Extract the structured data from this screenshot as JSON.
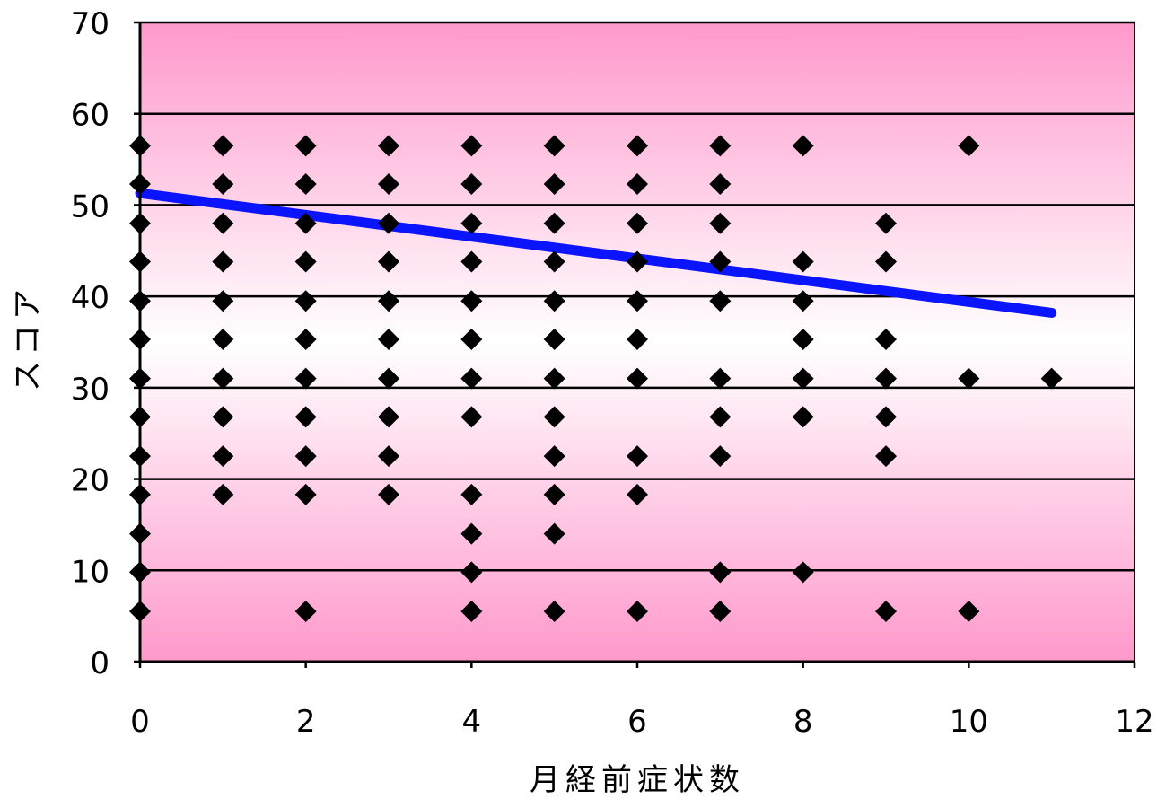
{
  "chart_data": {
    "type": "scatter",
    "title": "",
    "xlabel": "月経前症状数",
    "ylabel": "スコア",
    "xlim": [
      0,
      12
    ],
    "ylim": [
      0,
      70
    ],
    "xticks": [
      "0",
      "2",
      "4",
      "6",
      "8",
      "10",
      "12"
    ],
    "yticks": [
      "0",
      "10",
      "20",
      "30",
      "40",
      "50",
      "60",
      "70"
    ],
    "grid": "horizontal",
    "legend": "none",
    "colors": {
      "points": "#000000",
      "trendline": "#0a14ff",
      "background_edge": "#ff99cc",
      "background_center": "#ffffff",
      "gridline": "#000000"
    },
    "series": [
      {
        "points": [
          [
            0,
            56.5
          ],
          [
            0,
            52.3
          ],
          [
            0,
            48.0
          ],
          [
            0,
            43.8
          ],
          [
            0,
            39.5
          ],
          [
            0,
            35.3
          ],
          [
            0,
            31.0
          ],
          [
            0,
            26.8
          ],
          [
            0,
            22.5
          ],
          [
            0,
            18.3
          ],
          [
            0,
            14.0
          ],
          [
            0,
            9.8
          ],
          [
            0,
            5.5
          ],
          [
            1,
            56.5
          ],
          [
            1,
            52.3
          ],
          [
            1,
            48.0
          ],
          [
            1,
            43.8
          ],
          [
            1,
            39.5
          ],
          [
            1,
            35.3
          ],
          [
            1,
            31.0
          ],
          [
            1,
            26.8
          ],
          [
            1,
            22.5
          ],
          [
            1,
            18.3
          ],
          [
            2,
            56.5
          ],
          [
            2,
            52.3
          ],
          [
            2,
            48.0
          ],
          [
            2,
            43.8
          ],
          [
            2,
            39.5
          ],
          [
            2,
            35.3
          ],
          [
            2,
            31.0
          ],
          [
            2,
            26.8
          ],
          [
            2,
            22.5
          ],
          [
            2,
            18.3
          ],
          [
            2,
            5.5
          ],
          [
            3,
            56.5
          ],
          [
            3,
            52.3
          ],
          [
            3,
            48.0
          ],
          [
            3,
            43.8
          ],
          [
            3,
            39.5
          ],
          [
            3,
            35.3
          ],
          [
            3,
            31.0
          ],
          [
            3,
            26.8
          ],
          [
            3,
            22.5
          ],
          [
            3,
            18.3
          ],
          [
            4,
            56.5
          ],
          [
            4,
            52.3
          ],
          [
            4,
            48.0
          ],
          [
            4,
            43.8
          ],
          [
            4,
            39.5
          ],
          [
            4,
            35.3
          ],
          [
            4,
            31.0
          ],
          [
            4,
            26.8
          ],
          [
            4,
            18.3
          ],
          [
            4,
            14.0
          ],
          [
            4,
            9.8
          ],
          [
            4,
            5.5
          ],
          [
            5,
            56.5
          ],
          [
            5,
            52.3
          ],
          [
            5,
            48.0
          ],
          [
            5,
            43.8
          ],
          [
            5,
            39.5
          ],
          [
            5,
            35.3
          ],
          [
            5,
            31.0
          ],
          [
            5,
            26.8
          ],
          [
            5,
            22.5
          ],
          [
            5,
            18.3
          ],
          [
            5,
            14.0
          ],
          [
            5,
            5.5
          ],
          [
            6,
            56.5
          ],
          [
            6,
            52.3
          ],
          [
            6,
            48.0
          ],
          [
            6,
            43.8
          ],
          [
            6,
            39.5
          ],
          [
            6,
            35.3
          ],
          [
            6,
            31.0
          ],
          [
            6,
            22.5
          ],
          [
            6,
            18.3
          ],
          [
            6,
            5.5
          ],
          [
            7,
            56.5
          ],
          [
            7,
            52.3
          ],
          [
            7,
            48.0
          ],
          [
            7,
            43.8
          ],
          [
            7,
            39.5
          ],
          [
            7,
            31.0
          ],
          [
            7,
            26.8
          ],
          [
            7,
            22.5
          ],
          [
            7,
            9.8
          ],
          [
            7,
            5.5
          ],
          [
            8,
            56.5
          ],
          [
            8,
            43.8
          ],
          [
            8,
            39.5
          ],
          [
            8,
            35.3
          ],
          [
            8,
            31.0
          ],
          [
            8,
            26.8
          ],
          [
            8,
            9.8
          ],
          [
            9,
            48.0
          ],
          [
            9,
            43.8
          ],
          [
            9,
            35.3
          ],
          [
            9,
            31.0
          ],
          [
            9,
            26.8
          ],
          [
            9,
            22.5
          ],
          [
            9,
            5.5
          ],
          [
            10,
            56.5
          ],
          [
            10,
            31.0
          ],
          [
            10,
            5.5
          ],
          [
            11,
            31.0
          ]
        ]
      }
    ],
    "trendline": {
      "x": [
        0,
        11
      ],
      "y": [
        51.3,
        38.2
      ]
    }
  }
}
